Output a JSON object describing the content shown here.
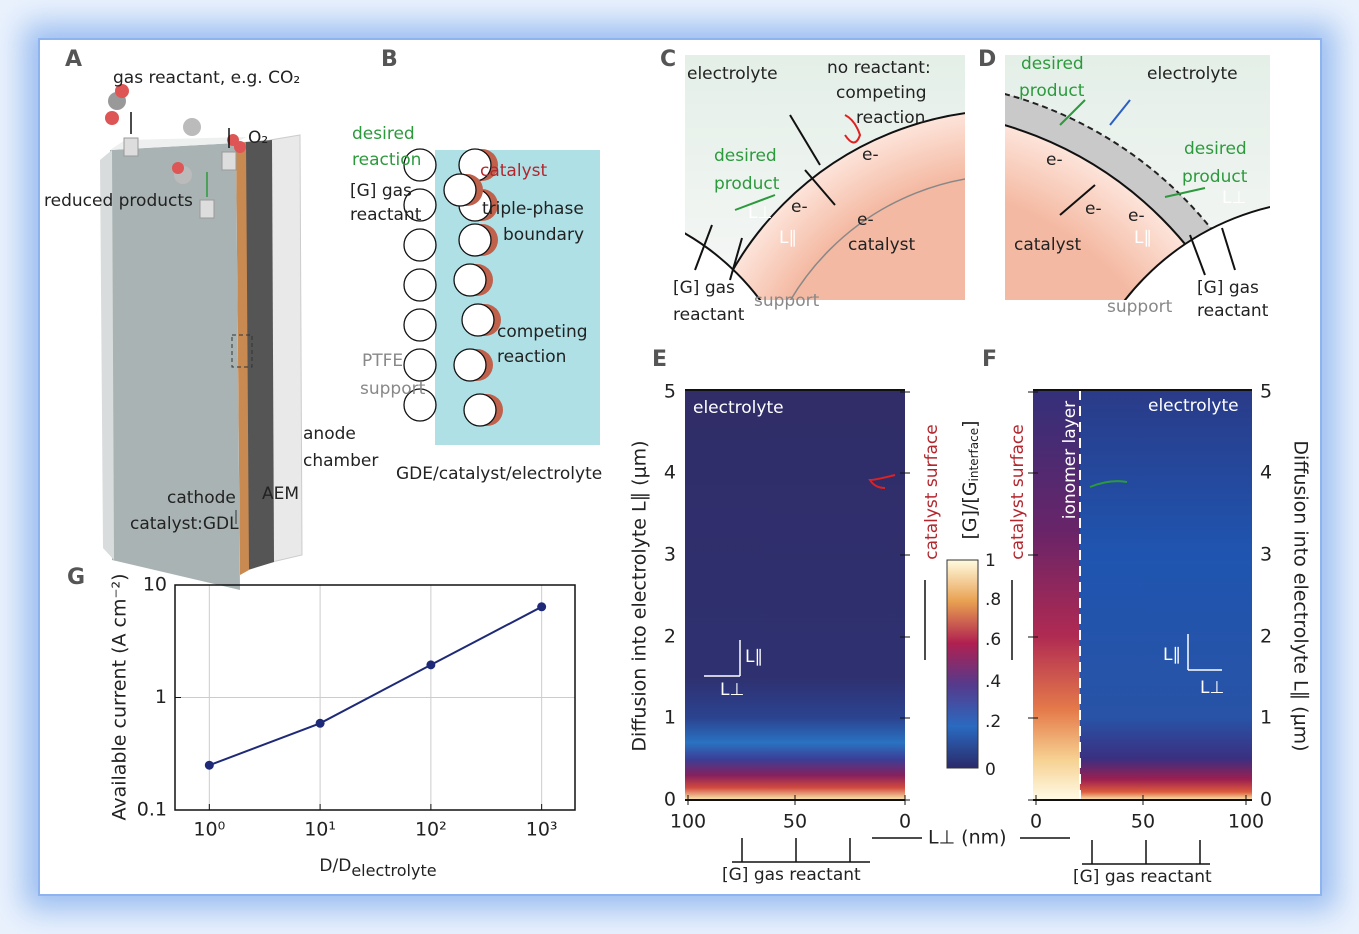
{
  "panels": {
    "A": {
      "label": "A",
      "gas_reactant": "gas reactant, e.g. CO₂",
      "o2": "O₂",
      "reduced_products": "reduced products",
      "anode": "anode",
      "chamber": "chamber",
      "cathode": "cathode",
      "catalyst_gdl": "catalyst:GDL",
      "aem": "AEM"
    },
    "B": {
      "label": "B",
      "desired": "desired",
      "reaction": "reaction",
      "catalyst": "catalyst",
      "gas": "[G] gas",
      "reactant": "reactant",
      "triple_phase": "triple-phase",
      "boundary": "boundary",
      "competing": "competing",
      "competing_reaction": "reaction",
      "ptfe": "PTFE",
      "support": "support",
      "caption": "GDE/catalyst/electrolyte"
    },
    "C": {
      "label": "C",
      "electrolyte": "electrolyte",
      "no_reactant": "no reactant:",
      "competing": "competing",
      "reaction": "reaction",
      "desired": "desired",
      "product": "product",
      "catalyst": "catalyst",
      "gas": "[G] gas",
      "reactant": "reactant",
      "support": "support",
      "electrons": [
        "e-",
        "e-",
        "e-"
      ],
      "l_perp": "L⊥",
      "l_par": "L∥"
    },
    "D": {
      "label": "D",
      "desired": "desired",
      "product": "product",
      "electrolyte": "electrolyte",
      "desired2": "desired",
      "product2": "product",
      "catalyst": "catalyst",
      "support": "support",
      "gas": "[G] gas",
      "reactant": "reactant",
      "electrons": [
        "e-",
        "e-",
        "e-"
      ],
      "l_perp": "L⊥",
      "l_par": "L∥"
    },
    "E": {
      "label": "E",
      "electrolyte": "electrolyte",
      "catalyst_surface": "catalyst surface",
      "ylabel": "Diffusion into electrolyte L∥ (μm)",
      "yticks": [
        "5",
        "4",
        "3",
        "2",
        "1",
        "0"
      ],
      "xticks": [
        "100",
        "50",
        "0"
      ],
      "l_par": "L∥",
      "l_perp": "L⊥",
      "gas_reactant": "[G] gas reactant"
    },
    "colorbar": {
      "label": "[G]/[G",
      "label_sub": "interface",
      "label_end": "]",
      "ticks": [
        "1",
        ".8",
        ".6",
        ".4",
        ".2",
        "0"
      ]
    },
    "xlabel_shared": "L⊥ (nm)",
    "F": {
      "label": "F",
      "electrolyte": "electrolyte",
      "ionomer": "ionomer layer",
      "catalyst_surface": "catalyst surface",
      "ylabel": "Diffusion into electrolyte L∥ (μm)",
      "yticks": [
        "5",
        "4",
        "3",
        "2",
        "1",
        "0"
      ],
      "xticks": [
        "0",
        "50",
        "100"
      ],
      "l_par": "L∥",
      "l_perp": "L⊥",
      "gas_reactant": "[G] gas reactant"
    },
    "G": {
      "label": "G"
    }
  },
  "chart_data": {
    "type": "line",
    "x": [
      1,
      10,
      100,
      1000
    ],
    "values": [
      0.25,
      0.59,
      1.95,
      6.4
    ],
    "color": "#1e2a78",
    "xlim": [
      0.49,
      2000
    ],
    "ylim": [
      0.1,
      10
    ],
    "xscale": "log",
    "yscale": "log",
    "grid": true,
    "xticks": [
      {
        "value": 1,
        "label": "10⁰"
      },
      {
        "value": 10,
        "label": "10¹"
      },
      {
        "value": 100,
        "label": "10²"
      },
      {
        "value": 1000,
        "label": "10³"
      }
    ],
    "yticks": [
      0.1,
      1,
      10
    ],
    "ylabel": "Available current (A cm⁻²)",
    "xlabel": "D/D",
    "xlabel_sub": "electrolyte"
  }
}
